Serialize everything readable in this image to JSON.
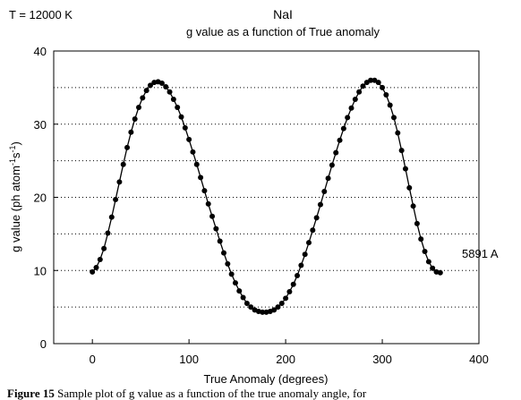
{
  "caption": {
    "label": "Figure 15",
    "text": "Sample plot of g value as a function of the true anomaly angle, for"
  },
  "chart_data": {
    "type": "scatter",
    "title": "NaI",
    "subtitle": "g value as a function of True anomaly",
    "annotation_left": "T = 12000 K",
    "series_label": "5891 A",
    "xlabel": "True Anomaly (degrees)",
    "ylabel": "g value (ph atom",
    "ylabel_sup1": "-1",
    "ylabel_mid": "s",
    "ylabel_sup2": "-1",
    "ylabel_end": ")",
    "xlim": [
      -40,
      400
    ],
    "ylim": [
      0,
      40
    ],
    "xticks": [
      0,
      100,
      200,
      300,
      400
    ],
    "yticks": [
      0,
      10,
      20,
      30,
      40
    ],
    "grid": "horizontal dotted",
    "series": [
      {
        "x": [
          0,
          4,
          8,
          12,
          16,
          20,
          24,
          28,
          32,
          36,
          40,
          44,
          48,
          52,
          56,
          60,
          64,
          68,
          72,
          76,
          80,
          84,
          88,
          92,
          96,
          100,
          104,
          108,
          112,
          116,
          120,
          124,
          128,
          132,
          136,
          140,
          144,
          148,
          152,
          156,
          160,
          164,
          168,
          172,
          176,
          180,
          184,
          188,
          192,
          196,
          200,
          204,
          208,
          212,
          216,
          220,
          224,
          228,
          232,
          236,
          240,
          244,
          248,
          252,
          256,
          260,
          264,
          268,
          272,
          276,
          280,
          284,
          288,
          292,
          296,
          300,
          304,
          308,
          312,
          316,
          320,
          324,
          328,
          332,
          336,
          340,
          344,
          348,
          352,
          356,
          360
        ],
        "y": [
          9.8,
          10.4,
          11.5,
          13.0,
          15.1,
          17.3,
          19.7,
          22.1,
          24.5,
          26.8,
          28.9,
          30.7,
          32.3,
          33.6,
          34.6,
          35.3,
          35.7,
          35.8,
          35.6,
          35.1,
          34.4,
          33.4,
          32.3,
          31.0,
          29.5,
          27.9,
          26.2,
          24.5,
          22.7,
          20.9,
          19.1,
          17.4,
          15.7,
          14.0,
          12.4,
          10.9,
          9.5,
          8.3,
          7.2,
          6.3,
          5.5,
          5.0,
          4.6,
          4.4,
          4.3,
          4.3,
          4.4,
          4.6,
          5.0,
          5.5,
          6.2,
          7.1,
          8.1,
          9.3,
          10.7,
          12.2,
          13.8,
          15.5,
          17.2,
          19.0,
          20.8,
          22.6,
          24.4,
          26.1,
          27.8,
          29.4,
          30.9,
          32.2,
          33.4,
          34.4,
          35.2,
          35.7,
          36.0,
          36.0,
          35.7,
          35.0,
          34.0,
          32.6,
          30.9,
          28.8,
          26.4,
          23.9,
          21.3,
          18.8,
          16.4,
          14.3,
          12.6,
          11.2,
          10.3,
          9.8,
          9.7
        ]
      }
    ]
  }
}
